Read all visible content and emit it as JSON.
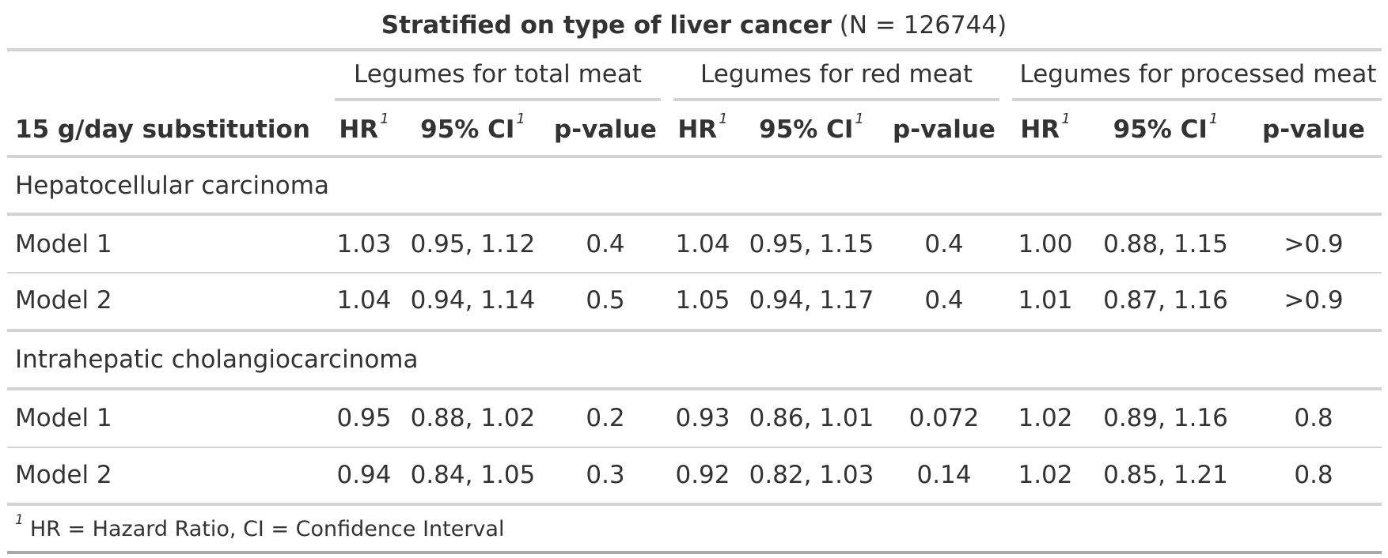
{
  "title": {
    "bold": "Stratified on type of liver cancer",
    "rest": " (N = 126744)"
  },
  "spanners": [
    "Legumes for total meat",
    "Legumes for red meat",
    "Legumes for processed meat"
  ],
  "columns": {
    "label": "15 g/day substitution",
    "hr": "HR",
    "ci": "95% CI",
    "p": "p-value",
    "footnote_mark": "1"
  },
  "groups": [
    {
      "name": "Hepatocellular carcinoma",
      "rows": [
        {
          "label": "Model 1",
          "cells": [
            "1.03",
            "0.95, 1.12",
            "0.4",
            "1.04",
            "0.95, 1.15",
            "0.4",
            "1.00",
            "0.88, 1.15",
            ">0.9"
          ]
        },
        {
          "label": "Model 2",
          "cells": [
            "1.04",
            "0.94, 1.14",
            "0.5",
            "1.05",
            "0.94, 1.17",
            "0.4",
            "1.01",
            "0.87, 1.16",
            ">0.9"
          ]
        }
      ]
    },
    {
      "name": "Intrahepatic cholangiocarcinoma",
      "rows": [
        {
          "label": "Model 1",
          "cells": [
            "0.95",
            "0.88, 1.02",
            "0.2",
            "0.93",
            "0.86, 1.01",
            "0.072",
            "1.02",
            "0.89, 1.16",
            "0.8"
          ]
        },
        {
          "label": "Model 2",
          "cells": [
            "0.94",
            "0.84, 1.05",
            "0.3",
            "0.92",
            "0.82, 1.03",
            "0.14",
            "1.02",
            "0.85, 1.21",
            "0.8"
          ]
        }
      ]
    }
  ],
  "footnote": {
    "mark": "1",
    "text": "HR = Hazard Ratio, CI = Confidence Interval"
  }
}
